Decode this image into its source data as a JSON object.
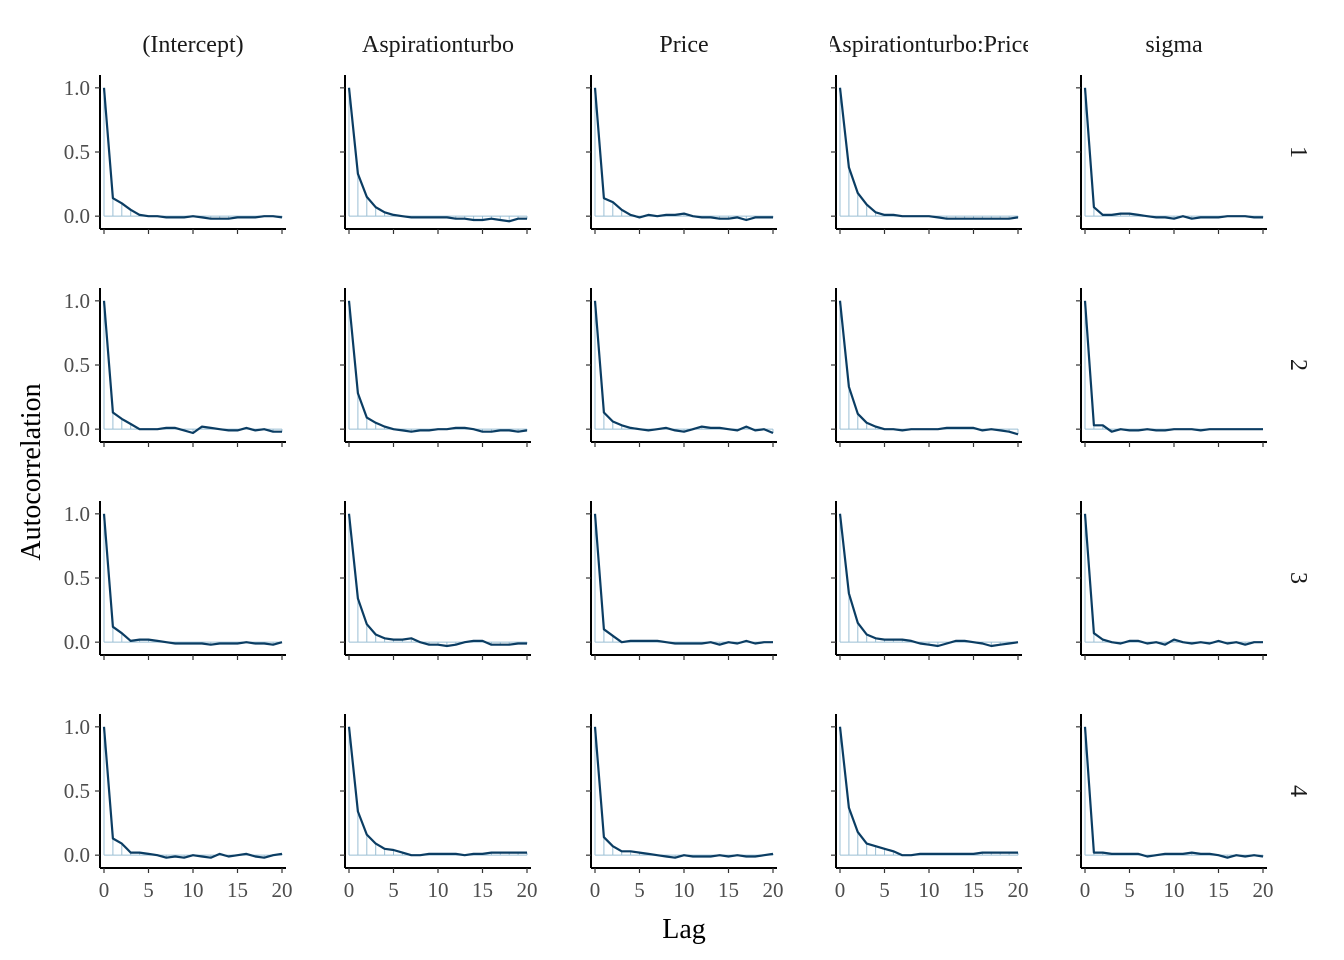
{
  "chart_data": {
    "type": "line",
    "title": "",
    "xlabel": "Lag",
    "ylabel": "Autocorrelation",
    "xlim": [
      0,
      20
    ],
    "ylim": [
      -0.1,
      1.1
    ],
    "x_ticks": [
      0,
      5,
      10,
      15,
      20
    ],
    "y_ticks": [
      0.0,
      0.5,
      1.0
    ],
    "y_tick_labels": [
      "0.0",
      "0.5",
      "1.0"
    ],
    "grid": false,
    "columns": [
      "(Intercept)",
      "Aspirationturbo",
      "Price",
      "Aspirationturbo:Price",
      "sigma"
    ],
    "rows": [
      "1",
      "2",
      "3",
      "4"
    ],
    "colors": {
      "line": "#0b3d63",
      "bar": "#9bbfd4",
      "axis": "#000000"
    },
    "lags": [
      0,
      1,
      2,
      3,
      4,
      5,
      6,
      7,
      8,
      9,
      10,
      11,
      12,
      13,
      14,
      15,
      16,
      17,
      18,
      19,
      20
    ],
    "panels": [
      [
        {
          "values": [
            1.0,
            0.14,
            0.1,
            0.05,
            0.01,
            0.0,
            0.0,
            -0.01,
            -0.01,
            -0.01,
            0.0,
            -0.01,
            -0.02,
            -0.02,
            -0.02,
            -0.01,
            -0.01,
            -0.01,
            0.0,
            0.0,
            -0.01
          ]
        },
        {
          "values": [
            1.0,
            0.33,
            0.15,
            0.07,
            0.03,
            0.01,
            0.0,
            -0.01,
            -0.01,
            -0.01,
            -0.01,
            -0.01,
            -0.02,
            -0.02,
            -0.03,
            -0.03,
            -0.02,
            -0.03,
            -0.04,
            -0.02,
            -0.02
          ]
        },
        {
          "values": [
            1.0,
            0.14,
            0.11,
            0.05,
            0.01,
            -0.01,
            0.01,
            0.0,
            0.01,
            0.01,
            0.02,
            0.0,
            -0.01,
            -0.01,
            -0.02,
            -0.02,
            -0.01,
            -0.03,
            -0.01,
            -0.01,
            -0.01
          ]
        },
        {
          "values": [
            1.0,
            0.38,
            0.18,
            0.09,
            0.03,
            0.01,
            0.01,
            0.0,
            0.0,
            0.0,
            0.0,
            -0.01,
            -0.02,
            -0.02,
            -0.02,
            -0.02,
            -0.02,
            -0.02,
            -0.02,
            -0.02,
            -0.01
          ]
        },
        {
          "values": [
            1.0,
            0.07,
            0.01,
            0.01,
            0.02,
            0.02,
            0.01,
            0.0,
            -0.01,
            -0.01,
            -0.02,
            0.0,
            -0.02,
            -0.01,
            -0.01,
            -0.01,
            0.0,
            0.0,
            0.0,
            -0.01,
            -0.01
          ]
        }
      ],
      [
        {
          "values": [
            1.0,
            0.13,
            0.08,
            0.04,
            0.0,
            0.0,
            0.0,
            0.01,
            0.01,
            -0.01,
            -0.03,
            0.02,
            0.01,
            0.0,
            -0.01,
            -0.01,
            0.01,
            -0.01,
            0.0,
            -0.02,
            -0.02
          ]
        },
        {
          "values": [
            1.0,
            0.28,
            0.09,
            0.05,
            0.02,
            0.0,
            -0.01,
            -0.02,
            -0.01,
            -0.01,
            0.0,
            0.0,
            0.01,
            0.01,
            0.0,
            -0.02,
            -0.02,
            -0.01,
            -0.01,
            -0.02,
            -0.01
          ]
        },
        {
          "values": [
            1.0,
            0.13,
            0.06,
            0.03,
            0.01,
            0.0,
            -0.01,
            0.0,
            0.01,
            -0.01,
            -0.02,
            0.0,
            0.02,
            0.01,
            0.01,
            0.0,
            -0.01,
            0.02,
            -0.01,
            0.0,
            -0.03
          ]
        },
        {
          "values": [
            1.0,
            0.33,
            0.12,
            0.05,
            0.02,
            0.0,
            0.0,
            -0.01,
            0.0,
            0.0,
            0.0,
            0.0,
            0.01,
            0.01,
            0.01,
            0.01,
            -0.01,
            0.0,
            -0.01,
            -0.02,
            -0.04
          ]
        },
        {
          "values": [
            1.0,
            0.03,
            0.03,
            -0.02,
            0.0,
            -0.01,
            -0.01,
            0.0,
            -0.01,
            -0.01,
            0.0,
            0.0,
            0.0,
            -0.01,
            0.0,
            0.0,
            0.0,
            0.0,
            0.0,
            0.0,
            0.0
          ]
        }
      ],
      [
        {
          "values": [
            1.0,
            0.12,
            0.07,
            0.01,
            0.02,
            0.02,
            0.01,
            0.0,
            -0.01,
            -0.01,
            -0.01,
            -0.01,
            -0.02,
            -0.01,
            -0.01,
            -0.01,
            0.0,
            -0.01,
            -0.01,
            -0.02,
            0.0
          ]
        },
        {
          "values": [
            1.0,
            0.34,
            0.14,
            0.06,
            0.03,
            0.02,
            0.02,
            0.03,
            0.0,
            -0.02,
            -0.02,
            -0.03,
            -0.02,
            0.0,
            0.01,
            0.01,
            -0.02,
            -0.02,
            -0.02,
            -0.01,
            -0.01
          ]
        },
        {
          "values": [
            1.0,
            0.1,
            0.05,
            0.0,
            0.01,
            0.01,
            0.01,
            0.01,
            0.0,
            -0.01,
            -0.01,
            -0.01,
            -0.01,
            0.0,
            -0.02,
            0.0,
            -0.01,
            0.01,
            -0.01,
            0.0,
            0.0
          ]
        },
        {
          "values": [
            1.0,
            0.38,
            0.15,
            0.06,
            0.03,
            0.02,
            0.02,
            0.02,
            0.01,
            -0.01,
            -0.02,
            -0.03,
            -0.01,
            0.01,
            0.01,
            0.0,
            -0.01,
            -0.03,
            -0.02,
            -0.01,
            0.0
          ]
        },
        {
          "values": [
            1.0,
            0.07,
            0.02,
            0.0,
            -0.01,
            0.01,
            0.01,
            -0.01,
            0.0,
            -0.02,
            0.02,
            0.0,
            -0.01,
            0.0,
            -0.01,
            0.01,
            -0.01,
            0.0,
            -0.02,
            0.0,
            0.0
          ]
        }
      ],
      [
        {
          "values": [
            1.0,
            0.13,
            0.09,
            0.02,
            0.02,
            0.01,
            0.0,
            -0.02,
            -0.01,
            -0.02,
            0.0,
            -0.01,
            -0.02,
            0.01,
            -0.01,
            0.0,
            0.01,
            -0.01,
            -0.02,
            0.0,
            0.01
          ]
        },
        {
          "values": [
            1.0,
            0.34,
            0.16,
            0.09,
            0.05,
            0.04,
            0.02,
            0.0,
            0.0,
            0.01,
            0.01,
            0.01,
            0.01,
            0.0,
            0.01,
            0.01,
            0.02,
            0.02,
            0.02,
            0.02,
            0.02
          ]
        },
        {
          "values": [
            1.0,
            0.14,
            0.07,
            0.03,
            0.03,
            0.02,
            0.01,
            0.0,
            -0.01,
            -0.02,
            0.0,
            -0.01,
            -0.01,
            -0.01,
            0.0,
            -0.01,
            0.0,
            -0.01,
            -0.01,
            0.0,
            0.01
          ]
        },
        {
          "values": [
            1.0,
            0.37,
            0.18,
            0.09,
            0.07,
            0.05,
            0.03,
            0.0,
            0.0,
            0.01,
            0.01,
            0.01,
            0.01,
            0.01,
            0.01,
            0.01,
            0.02,
            0.02,
            0.02,
            0.02,
            0.02
          ]
        },
        {
          "values": [
            1.0,
            0.02,
            0.02,
            0.01,
            0.01,
            0.01,
            0.01,
            -0.01,
            0.0,
            0.01,
            0.01,
            0.01,
            0.02,
            0.01,
            0.01,
            0.0,
            -0.02,
            0.0,
            -0.01,
            0.0,
            -0.01
          ]
        }
      ]
    ]
  }
}
